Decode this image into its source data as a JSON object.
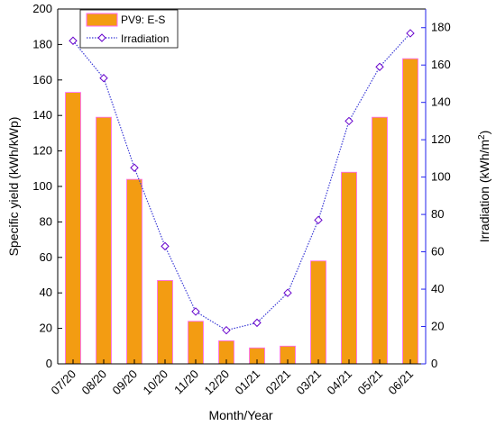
{
  "chart_data": {
    "type": "bar",
    "categories": [
      "07/20",
      "08/20",
      "09/20",
      "10/20",
      "11/20",
      "12/20",
      "01/21",
      "02/21",
      "03/21",
      "04/21",
      "05/21",
      "06/21"
    ],
    "series": [
      {
        "name": "PV9: E-S",
        "chart_type": "bar",
        "axis": "left",
        "color": "#f39c12",
        "values": [
          153,
          139,
          104,
          47,
          24,
          13,
          9,
          10,
          58,
          108,
          139,
          172
        ]
      },
      {
        "name": "Irradiation",
        "chart_type": "line",
        "axis": "right",
        "color": "#3b3bd6",
        "marker": "diamond",
        "line_style": "dotted",
        "values": [
          173,
          153,
          105,
          63,
          28,
          18,
          22,
          38,
          77,
          130,
          159,
          177
        ]
      }
    ],
    "xlabel": "Month/Year",
    "ylabel": "Specific yield (kWh/kWp)",
    "ylabel_right": "Irradiation (kWh/m",
    "ylabel_right_sup": "2",
    "ylabel_right_close": ")",
    "ylim": [
      0,
      200
    ],
    "ylim_right": [
      0,
      190
    ],
    "yticks_left": [
      "0",
      "20",
      "40",
      "60",
      "80",
      "100",
      "120",
      "140",
      "160",
      "180",
      "200"
    ],
    "yticks_right": [
      "0",
      "20",
      "40",
      "60",
      "80",
      "100",
      "120",
      "140",
      "160",
      "180"
    ],
    "legend_position": "top-left",
    "grid": false
  }
}
